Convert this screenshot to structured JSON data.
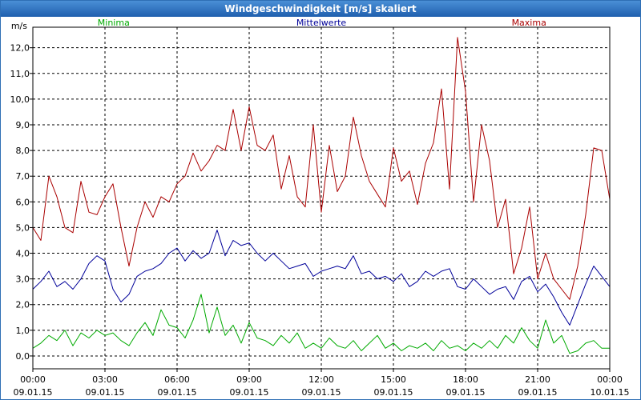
{
  "window": {
    "title": "Windgeschwindigkeit [m/s] skaliert"
  },
  "chart_data": {
    "type": "line",
    "title": "Windgeschwindigkeit [m/s] skaliert",
    "ylabel": "m/s",
    "xlabel": "",
    "ylim": [
      -0.5,
      12.8
    ],
    "xlim_hours": [
      0,
      24
    ],
    "y_ticks": [
      "0,0",
      "1,0",
      "2,0",
      "3,0",
      "4,0",
      "5,0",
      "6,0",
      "7,0",
      "8,0",
      "9,0",
      "10,0",
      "11,0",
      "12,0"
    ],
    "x_ticks": [
      {
        "time": "00:00",
        "date": "09.01.15"
      },
      {
        "time": "03:00",
        "date": "09.01.15"
      },
      {
        "time": "06:00",
        "date": "09.01.15"
      },
      {
        "time": "09:00",
        "date": "09.01.15"
      },
      {
        "time": "12:00",
        "date": "09.01.15"
      },
      {
        "time": "15:00",
        "date": "09.01.15"
      },
      {
        "time": "18:00",
        "date": "09.01.15"
      },
      {
        "time": "21:00",
        "date": "09.01.15"
      },
      {
        "time": "00:00",
        "date": "10.01.15"
      }
    ],
    "grid": true,
    "series": [
      {
        "name": "Minima",
        "color": "#00aa00",
        "x_hours": [
          0,
          0.333,
          0.667,
          1,
          1.333,
          1.667,
          2,
          2.333,
          2.667,
          3,
          3.333,
          3.667,
          4,
          4.333,
          4.667,
          5,
          5.333,
          5.667,
          6,
          6.333,
          6.667,
          7,
          7.333,
          7.667,
          8,
          8.333,
          8.667,
          9,
          9.333,
          9.667,
          10,
          10.333,
          10.667,
          11,
          11.333,
          11.667,
          12,
          12.333,
          12.667,
          13,
          13.333,
          13.667,
          14,
          14.333,
          14.667,
          15,
          15.333,
          15.667,
          16,
          16.333,
          16.667,
          17,
          17.333,
          17.667,
          18,
          18.333,
          18.667,
          19,
          19.333,
          19.667,
          20,
          20.333,
          20.667,
          21,
          21.333,
          21.667,
          22,
          22.333,
          22.667,
          23,
          23.333,
          23.667,
          24
        ],
        "values": [
          0.3,
          0.5,
          0.8,
          0.6,
          1.0,
          0.4,
          0.9,
          0.7,
          1.0,
          0.8,
          0.9,
          0.6,
          0.4,
          0.9,
          1.3,
          0.8,
          1.8,
          1.2,
          1.1,
          0.7,
          1.4,
          2.4,
          0.9,
          1.9,
          0.8,
          1.2,
          0.5,
          1.3,
          0.7,
          0.6,
          0.4,
          0.8,
          0.5,
          0.9,
          0.3,
          0.5,
          0.3,
          0.7,
          0.4,
          0.3,
          0.6,
          0.2,
          0.5,
          0.8,
          0.3,
          0.5,
          0.2,
          0.4,
          0.3,
          0.5,
          0.2,
          0.6,
          0.3,
          0.4,
          0.2,
          0.5,
          0.3,
          0.6,
          0.3,
          0.8,
          0.5,
          1.1,
          0.6,
          0.3,
          1.4,
          0.5,
          0.8,
          0.1,
          0.2,
          0.5,
          0.6,
          0.3,
          0.3
        ]
      },
      {
        "name": "Mittelwerte",
        "color": "#000099",
        "x_hours": [
          0,
          0.333,
          0.667,
          1,
          1.333,
          1.667,
          2,
          2.333,
          2.667,
          3,
          3.333,
          3.667,
          4,
          4.333,
          4.667,
          5,
          5.333,
          5.667,
          6,
          6.333,
          6.667,
          7,
          7.333,
          7.667,
          8,
          8.333,
          8.667,
          9,
          9.333,
          9.667,
          10,
          10.333,
          10.667,
          11,
          11.333,
          11.667,
          12,
          12.333,
          12.667,
          13,
          13.333,
          13.667,
          14,
          14.333,
          14.667,
          15,
          15.333,
          15.667,
          16,
          16.333,
          16.667,
          17,
          17.333,
          17.667,
          18,
          18.333,
          18.667,
          19,
          19.333,
          19.667,
          20,
          20.333,
          20.667,
          21,
          21.333,
          21.667,
          22,
          22.333,
          22.667,
          23,
          23.333,
          23.667,
          24
        ],
        "values": [
          2.6,
          2.9,
          3.3,
          2.7,
          2.9,
          2.6,
          3.0,
          3.6,
          3.9,
          3.7,
          2.6,
          2.1,
          2.4,
          3.1,
          3.3,
          3.4,
          3.6,
          4.0,
          4.2,
          3.7,
          4.1,
          3.8,
          4.0,
          4.9,
          3.9,
          4.5,
          4.3,
          4.4,
          4.0,
          3.7,
          4.0,
          3.7,
          3.4,
          3.5,
          3.6,
          3.1,
          3.3,
          3.4,
          3.5,
          3.4,
          3.9,
          3.2,
          3.3,
          3.0,
          3.1,
          2.9,
          3.2,
          2.7,
          2.9,
          3.3,
          3.1,
          3.3,
          3.4,
          2.7,
          2.6,
          3.0,
          2.7,
          2.4,
          2.6,
          2.7,
          2.2,
          2.9,
          3.1,
          2.5,
          2.8,
          2.3,
          1.7,
          1.2,
          2.0,
          2.8,
          3.5,
          3.1,
          2.7
        ]
      },
      {
        "name": "Maxima",
        "color": "#aa0000",
        "x_hours": [
          0,
          0.333,
          0.667,
          1,
          1.333,
          1.667,
          2,
          2.333,
          2.667,
          3,
          3.333,
          3.667,
          4,
          4.333,
          4.667,
          5,
          5.333,
          5.667,
          6,
          6.333,
          6.667,
          7,
          7.333,
          7.667,
          8,
          8.333,
          8.667,
          9,
          9.333,
          9.667,
          10,
          10.333,
          10.667,
          11,
          11.333,
          11.667,
          12,
          12.333,
          12.667,
          13,
          13.333,
          13.667,
          14,
          14.333,
          14.667,
          15,
          15.333,
          15.667,
          16,
          16.333,
          16.667,
          17,
          17.333,
          17.667,
          18,
          18.333,
          18.667,
          19,
          19.333,
          19.667,
          20,
          20.333,
          20.667,
          21,
          21.333,
          21.667,
          22,
          22.333,
          22.667,
          23,
          23.333,
          23.667,
          24
        ],
        "values": [
          5.0,
          4.5,
          7.0,
          6.2,
          5.0,
          4.8,
          6.8,
          5.6,
          5.5,
          6.2,
          6.7,
          5.0,
          3.5,
          5.0,
          6.0,
          5.4,
          6.2,
          6.0,
          6.7,
          7.0,
          7.9,
          7.2,
          7.6,
          8.2,
          8.0,
          9.6,
          8.0,
          9.7,
          8.2,
          8.0,
          8.6,
          6.5,
          7.8,
          6.2,
          5.8,
          9.0,
          5.6,
          8.2,
          6.4,
          7.0,
          9.3,
          7.8,
          6.8,
          6.3,
          5.8,
          8.1,
          6.8,
          7.2,
          5.9,
          7.5,
          8.3,
          10.4,
          6.5,
          12.4,
          10.3,
          6.0,
          9.0,
          7.6,
          5.0,
          6.1,
          3.2,
          4.2,
          5.8,
          3.0,
          4.0,
          3.0,
          2.6,
          2.2,
          3.5,
          5.5,
          8.1,
          8.0,
          6.1
        ]
      }
    ]
  }
}
